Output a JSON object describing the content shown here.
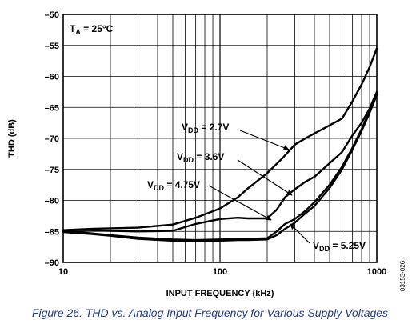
{
  "chart_data": {
    "type": "line",
    "x_scale": "log",
    "xlim": [
      10,
      1000
    ],
    "ylim": [
      -90,
      -50
    ],
    "xlabel": "INPUT FREQUENCY (kHz)",
    "ylabel": "THD (dB)",
    "x_ticks": [
      "10",
      "100",
      "1000"
    ],
    "y_ticks": [
      "-50",
      "-55",
      "-60",
      "-65",
      "-70",
      "-75",
      "-80",
      "-85",
      "-90"
    ],
    "grid": true,
    "condition": {
      "prefix": "T",
      "sub": "A",
      "suffix": " = 25°C"
    },
    "series": [
      {
        "name": "VDD = 2.7V",
        "label": {
          "prefix": "V",
          "sub": "DD",
          "suffix": " = 2.7V"
        },
        "x": [
          10,
          15,
          20,
          30,
          50,
          70,
          100,
          130,
          150,
          200,
          250,
          300,
          350,
          400,
          500,
          600,
          700,
          800,
          900,
          1000
        ],
        "y": [
          -84.8,
          -84.6,
          -84.5,
          -84.4,
          -83.9,
          -82.8,
          -81.3,
          -79.5,
          -78.1,
          -75.6,
          -73.2,
          -71.0,
          -70.0,
          -69.2,
          -67.9,
          -66.8,
          -64.0,
          -61.3,
          -58.5,
          -55.5
        ]
      },
      {
        "name": "VDD = 3.6V",
        "label": {
          "prefix": "V",
          "sub": "DD",
          "suffix": " = 3.6V"
        },
        "x": [
          10,
          15,
          20,
          30,
          50,
          70,
          100,
          130,
          150,
          200,
          230,
          260,
          300,
          350,
          400,
          500,
          600,
          700,
          800,
          900,
          1000
        ],
        "y": [
          -84.8,
          -84.8,
          -84.9,
          -85.0,
          -84.9,
          -83.8,
          -83.0,
          -82.8,
          -82.9,
          -82.9,
          -81.5,
          -79.5,
          -78.2,
          -77.0,
          -76.2,
          -74.0,
          -72.2,
          -69.5,
          -67.5,
          -65.2,
          -62.5
        ]
      },
      {
        "name": "VDD = 4.75V",
        "label": {
          "prefix": "V",
          "sub": "DD",
          "suffix": " = 4.75V"
        },
        "x": [
          10,
          15,
          20,
          30,
          50,
          70,
          100,
          130,
          150,
          200,
          230,
          260,
          300,
          350,
          400,
          500,
          600,
          700,
          800,
          900,
          1000
        ],
        "y": [
          -84.9,
          -85.3,
          -85.6,
          -86.0,
          -86.3,
          -86.4,
          -86.3,
          -86.2,
          -86.2,
          -86.1,
          -85.0,
          -83.8,
          -83.0,
          -81.7,
          -80.3,
          -77.5,
          -74.6,
          -71.5,
          -68.5,
          -65.6,
          -62.8
        ]
      },
      {
        "name": "VDD = 5.25V",
        "label": {
          "prefix": "V",
          "sub": "DD",
          "suffix": " = 5.25V"
        },
        "x": [
          10,
          15,
          20,
          30,
          50,
          70,
          100,
          130,
          150,
          200,
          230,
          260,
          300,
          350,
          400,
          500,
          600,
          700,
          800,
          900,
          1000
        ],
        "y": [
          -85.1,
          -85.4,
          -85.7,
          -86.2,
          -86.5,
          -86.6,
          -86.5,
          -86.4,
          -86.4,
          -86.3,
          -85.6,
          -84.6,
          -83.6,
          -82.1,
          -80.9,
          -78.0,
          -75.0,
          -71.8,
          -68.8,
          -65.9,
          -63.0
        ]
      }
    ]
  },
  "figure_id": "03153-026",
  "caption": "Figure 26. THD vs. Analog Input Frequency for Various Supply Voltages",
  "style": {
    "line_color": "#000000",
    "grid_color": "#000000",
    "caption_color": "#1f3a8a"
  }
}
